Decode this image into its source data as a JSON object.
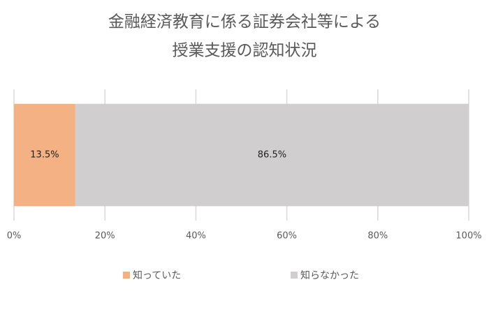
{
  "chart_data": {
    "type": "bar",
    "orientation": "horizontal",
    "stacked": true,
    "title": [
      "金融経済教育に係る証券会社等による",
      "授業支援の認知状況"
    ],
    "categories": [
      null
    ],
    "series": [
      {
        "name": "知っていた",
        "color": "#f4b183",
        "values": [
          13.5
        ],
        "value_labels": [
          "13.5%"
        ]
      },
      {
        "name": "知らなかった",
        "color": "#d0cece",
        "values": [
          86.5
        ],
        "value_labels": [
          "86.5%"
        ]
      }
    ],
    "xlim": [
      0,
      100
    ],
    "xticks": [
      {
        "value": 0,
        "label": "0%"
      },
      {
        "value": 20,
        "label": "20%"
      },
      {
        "value": 40,
        "label": "40%"
      },
      {
        "value": 60,
        "label": "60%"
      },
      {
        "value": 80,
        "label": "80%"
      },
      {
        "value": 100,
        "label": "100%"
      }
    ],
    "grid": true,
    "legend": "bottom"
  }
}
